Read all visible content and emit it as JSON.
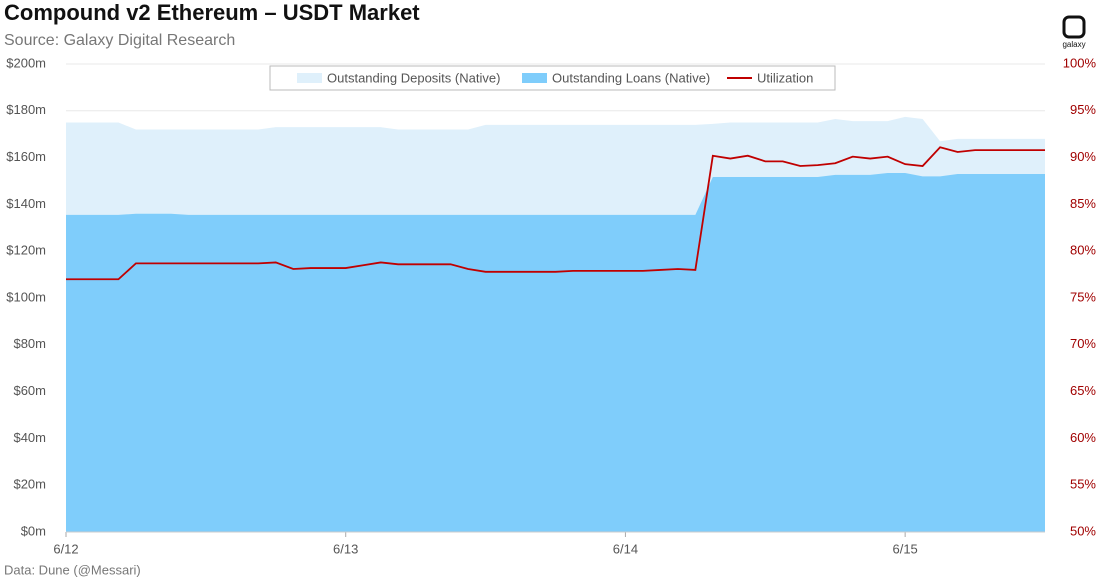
{
  "chart_data": {
    "type": "area-line",
    "title": "Compound v2 Ethereum – USDT Market",
    "subtitle": "Source: Galaxy Digital Research",
    "footnote": "Data: Dune (@Messari)",
    "logo": "galaxy",
    "categories": [
      "6/12",
      null,
      null,
      null,
      null,
      null,
      null,
      null,
      null,
      null,
      null,
      null,
      null,
      null,
      null,
      null,
      "6/13",
      null,
      null,
      null,
      null,
      null,
      null,
      null,
      null,
      null,
      null,
      null,
      null,
      null,
      null,
      null,
      "6/14",
      null,
      null,
      null,
      null,
      null,
      null,
      null,
      null,
      null,
      null,
      null,
      null,
      null,
      null,
      null,
      "6/15",
      null,
      null,
      null,
      null,
      null,
      null,
      null,
      null
    ],
    "ylim": [
      0,
      200
    ],
    "yticks": [
      {
        "value": 0,
        "label": "$0m"
      },
      {
        "value": 20,
        "label": "$20m"
      },
      {
        "value": 40,
        "label": "$40m"
      },
      {
        "value": 60,
        "label": "$60m"
      },
      {
        "value": 80,
        "label": "$80m"
      },
      {
        "value": 100,
        "label": "$100m"
      },
      {
        "value": 120,
        "label": "$120m"
      },
      {
        "value": 140,
        "label": "$140m"
      },
      {
        "value": 160,
        "label": "$160m"
      },
      {
        "value": 180,
        "label": "$180m"
      },
      {
        "value": 200,
        "label": "$200m"
      }
    ],
    "y2lim": [
      50,
      100
    ],
    "y2ticks": [
      {
        "value": 50,
        "label": "50%"
      },
      {
        "value": 55,
        "label": "55%"
      },
      {
        "value": 60,
        "label": "60%"
      },
      {
        "value": 65,
        "label": "65%"
      },
      {
        "value": 70,
        "label": "70%"
      },
      {
        "value": 75,
        "label": "75%"
      },
      {
        "value": 80,
        "label": "80%"
      },
      {
        "value": 85,
        "label": "85%"
      },
      {
        "value": 90,
        "label": "90%"
      },
      {
        "value": 95,
        "label": "95%"
      },
      {
        "value": 100,
        "label": "100%"
      }
    ],
    "grid": true,
    "series": [
      {
        "name": "Outstanding Deposits (Native)",
        "kind": "area",
        "color": "#dff0fb",
        "values": [
          175,
          175,
          175,
          175,
          172,
          172,
          172,
          172,
          172,
          172,
          172,
          172,
          173,
          173,
          173,
          173,
          173,
          173,
          173,
          172,
          172,
          172,
          172,
          172,
          174,
          174,
          174,
          174,
          174,
          174,
          174,
          174,
          174,
          174,
          174,
          174,
          174,
          174.4,
          175,
          175,
          175,
          175,
          175,
          175,
          176.5,
          175.6,
          175.6,
          175.6,
          177.4,
          176.5,
          167,
          168,
          168,
          168,
          168,
          168,
          168
        ]
      },
      {
        "name": "Outstanding Loans (Native)",
        "kind": "area",
        "color": "#7fcdfb",
        "values": [
          135.5,
          135.5,
          135.5,
          135.5,
          136,
          136,
          136,
          135.5,
          135.5,
          135.5,
          135.5,
          135.5,
          135.5,
          135.5,
          135.5,
          135.5,
          135.5,
          135.5,
          135.5,
          135.5,
          135.5,
          135.5,
          135.5,
          135.5,
          135.5,
          135.5,
          135.5,
          135.5,
          135.5,
          135.5,
          135.5,
          135.5,
          135.5,
          135.5,
          135.5,
          135.5,
          135.5,
          151.7,
          151.7,
          151.7,
          151.7,
          151.7,
          151.7,
          151.7,
          152.6,
          152.6,
          152.6,
          153.4,
          153.4,
          152,
          152,
          153,
          153,
          153,
          153,
          153,
          153
        ]
      },
      {
        "name": "Utilization",
        "kind": "line",
        "axis": "y2",
        "color": "#c00000",
        "values": [
          77,
          77,
          77,
          77,
          78.7,
          78.7,
          78.7,
          78.7,
          78.7,
          78.7,
          78.7,
          78.7,
          78.8,
          78.1,
          78.2,
          78.2,
          78.2,
          78.5,
          78.8,
          78.6,
          78.6,
          78.6,
          78.6,
          78.1,
          77.8,
          77.8,
          77.8,
          77.8,
          77.8,
          77.9,
          77.9,
          77.9,
          77.9,
          77.9,
          78,
          78.1,
          78,
          90.2,
          89.9,
          90.2,
          89.6,
          89.6,
          89.1,
          89.2,
          89.4,
          90.1,
          89.9,
          90.1,
          89.3,
          89.1,
          91.1,
          90.6,
          90.8,
          90.8,
          90.8,
          90.8,
          90.8
        ]
      }
    ]
  }
}
